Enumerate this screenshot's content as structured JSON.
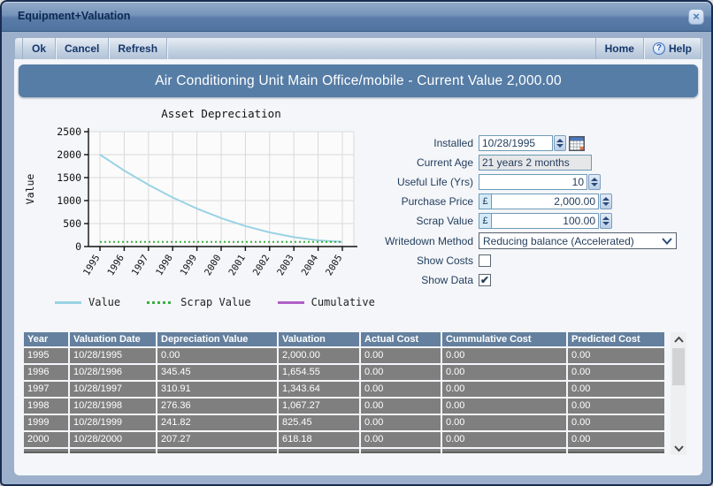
{
  "window": {
    "title": "Equipment+Valuation",
    "close_glyph": "×"
  },
  "toolbar": {
    "ok": "Ok",
    "cancel": "Cancel",
    "refresh": "Refresh",
    "home": "Home",
    "help": "Help",
    "help_glyph": "?"
  },
  "banner": {
    "title": "Air Conditioning Unit Main Office/mobile - Current Value 2,000.00"
  },
  "form": {
    "installed": {
      "label": "Installed",
      "value": "10/28/1995"
    },
    "current_age": {
      "label": "Current Age",
      "value": "21 years 2 months"
    },
    "useful_life": {
      "label": "Useful Life (Yrs)",
      "value": "10"
    },
    "purchase_price": {
      "label": "Purchase Price",
      "currency": "£",
      "value": "2,000.00"
    },
    "scrap_value": {
      "label": "Scrap Value",
      "currency": "£",
      "value": "100.00"
    },
    "writedown_method": {
      "label": "Writedown Method",
      "value": "Reducing balance (Accelerated)"
    },
    "show_costs": {
      "label": "Show Costs",
      "checked": false
    },
    "show_data": {
      "label": "Show Data",
      "checked": true
    }
  },
  "chart_data": {
    "type": "line",
    "title": "Asset Depreciation",
    "xlabel": "",
    "ylabel": "Value",
    "ylim": [
      0,
      2500
    ],
    "yticks": [
      0,
      500,
      1000,
      1500,
      2000,
      2500
    ],
    "x": [
      "1995",
      "1996",
      "1997",
      "1998",
      "1999",
      "2000",
      "2001",
      "2002",
      "2003",
      "2004",
      "2005"
    ],
    "grid": true,
    "legend_position": "bottom",
    "series": [
      {
        "name": "Value",
        "color": "#9ad3e4",
        "style": "solid",
        "values": [
          2000,
          1654.55,
          1343.64,
          1067.27,
          825.45,
          618.18,
          445.45,
          307.27,
          203.64,
          134.55,
          100
        ]
      },
      {
        "name": "Scrap Value",
        "color": "#3cb043",
        "style": "dotted",
        "values": [
          100,
          100,
          100,
          100,
          100,
          100,
          100,
          100,
          100,
          100,
          100
        ]
      },
      {
        "name": "Cumulative",
        "color": "#b05fc6",
        "style": "solid",
        "values": []
      }
    ]
  },
  "table": {
    "headers": [
      "Year",
      "Valuation Date",
      "Depreciation Value",
      "Valuation",
      "Actual Cost",
      "Cummulative Cost",
      "Predicted Cost"
    ],
    "rows": [
      [
        "1995",
        "10/28/1995",
        "0.00",
        "2,000.00",
        "0.00",
        "0.00",
        "0.00"
      ],
      [
        "1996",
        "10/28/1996",
        "345.45",
        "1,654.55",
        "0.00",
        "0.00",
        "0.00"
      ],
      [
        "1997",
        "10/28/1997",
        "310.91",
        "1,343.64",
        "0.00",
        "0.00",
        "0.00"
      ],
      [
        "1998",
        "10/28/1998",
        "276.36",
        "1,067.27",
        "0.00",
        "0.00",
        "0.00"
      ],
      [
        "1999",
        "10/28/1999",
        "241.82",
        "825.45",
        "0.00",
        "0.00",
        "0.00"
      ],
      [
        "2000",
        "10/28/2000",
        "207.27",
        "618.18",
        "0.00",
        "0.00",
        "0.00"
      ]
    ]
  },
  "colors": {
    "titlebar_top": "#93abc9",
    "titlebar_bottom": "#4f739f",
    "frame": "#9cb0cc",
    "banner": "#567da6",
    "table_header": "#64809e",
    "table_row": "#7f7f7f",
    "series_value": "#9ad3e4",
    "series_scrap": "#3cb043",
    "series_cumulative": "#b05fc6"
  }
}
